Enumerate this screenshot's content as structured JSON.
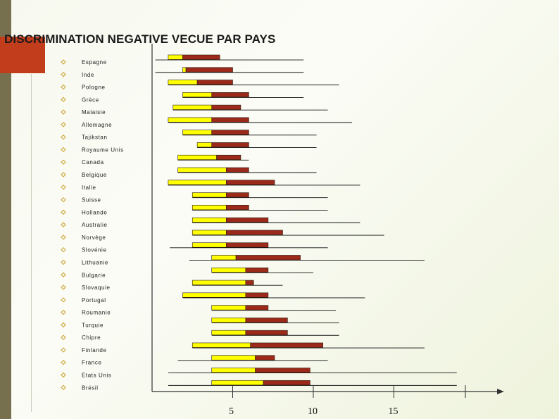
{
  "title": "DISCRIMINATION NEGATIVE VECUE PAR PAYS",
  "colors": {
    "yellow": "#ffff00",
    "darkred": "#9b2a1a",
    "accent": "#c23d1c",
    "stripe": "#77704f",
    "bullet": "#c8a02a"
  },
  "chart_data": {
    "type": "bar",
    "orientation": "horizontal",
    "stacked": true,
    "xlim": [
      0,
      19.5
    ],
    "x_ticks": [
      5,
      10,
      15
    ],
    "categories": [
      "Espagne",
      "Inde",
      "Pologne",
      "Grèce",
      "Malaisie",
      "Allemagne",
      "Tajikstan",
      "Royaume Unis",
      "Canada",
      "Belgique",
      "Italie",
      "Suisse",
      "Hollande",
      "Australie",
      "Norvège",
      "Slovénie",
      "Lithuanie",
      "Bulgarie",
      "Slovaquie",
      "Portugal",
      "Roumanie",
      "Turquie",
      "Chipre",
      "Finlande",
      "France",
      "Etats Unis",
      "Brésil"
    ],
    "series": [
      {
        "color": "#ffff00",
        "segments": [
          [
            1.0,
            1.9
          ],
          [
            1.9,
            2.1
          ],
          [
            1.0,
            2.8
          ],
          [
            1.9,
            3.7
          ],
          [
            1.3,
            3.7
          ],
          [
            1.0,
            3.7
          ],
          [
            1.9,
            3.7
          ],
          [
            2.8,
            3.7
          ],
          [
            1.6,
            4.0
          ],
          [
            1.6,
            4.6
          ],
          [
            1.0,
            4.6
          ],
          [
            2.5,
            4.6
          ],
          [
            2.5,
            4.6
          ],
          [
            2.5,
            4.6
          ],
          [
            2.5,
            4.6
          ],
          [
            2.5,
            4.6
          ],
          [
            3.7,
            5.2
          ],
          [
            3.7,
            5.8
          ],
          [
            2.5,
            5.8
          ],
          [
            1.9,
            5.8
          ],
          [
            3.7,
            5.8
          ],
          [
            3.7,
            5.8
          ],
          [
            3.7,
            5.8
          ],
          [
            2.5,
            6.1
          ],
          [
            3.7,
            6.4
          ],
          [
            3.7,
            6.4
          ],
          [
            3.7,
            6.9
          ]
        ]
      },
      {
        "color": "#9b2a1a",
        "segments": [
          [
            1.9,
            4.2
          ],
          [
            2.1,
            5.0
          ],
          [
            2.8,
            5.0
          ],
          [
            3.7,
            6.0
          ],
          [
            3.7,
            5.5
          ],
          [
            3.7,
            6.0
          ],
          [
            3.7,
            6.0
          ],
          [
            3.7,
            6.0
          ],
          [
            4.0,
            5.5
          ],
          [
            4.6,
            6.0
          ],
          [
            4.6,
            7.6
          ],
          [
            4.6,
            6.0
          ],
          [
            4.6,
            6.0
          ],
          [
            4.6,
            7.2
          ],
          [
            4.6,
            8.1
          ],
          [
            4.6,
            7.2
          ],
          [
            5.2,
            9.2
          ],
          [
            5.8,
            7.2
          ],
          [
            5.8,
            6.3
          ],
          [
            5.8,
            7.2
          ],
          [
            5.8,
            7.2
          ],
          [
            5.8,
            8.4
          ],
          [
            5.8,
            8.4
          ],
          [
            6.1,
            10.6
          ],
          [
            6.4,
            7.6
          ],
          [
            6.4,
            9.8
          ],
          [
            6.9,
            9.8
          ]
        ]
      }
    ],
    "lines": [
      [
        0.2,
        9.4
      ],
      [
        0.2,
        9.4
      ],
      [
        1.0,
        11.6
      ],
      [
        1.9,
        9.4
      ],
      [
        1.3,
        10.9
      ],
      [
        1.0,
        12.4
      ],
      [
        1.9,
        10.2
      ],
      [
        2.8,
        10.2
      ],
      [
        1.6,
        6.0
      ],
      [
        1.6,
        10.2
      ],
      [
        1.0,
        12.9
      ],
      [
        2.5,
        10.9
      ],
      [
        2.5,
        10.9
      ],
      [
        2.5,
        12.9
      ],
      [
        2.5,
        14.4
      ],
      [
        1.1,
        10.9
      ],
      [
        2.3,
        16.9
      ],
      [
        3.7,
        10.0
      ],
      [
        2.5,
        8.1
      ],
      [
        1.9,
        13.2
      ],
      [
        3.7,
        11.4
      ],
      [
        3.7,
        11.6
      ],
      [
        3.7,
        11.6
      ],
      [
        2.5,
        16.9
      ],
      [
        1.6,
        10.9
      ],
      [
        1.0,
        18.9
      ],
      [
        1.0,
        18.9
      ]
    ]
  }
}
